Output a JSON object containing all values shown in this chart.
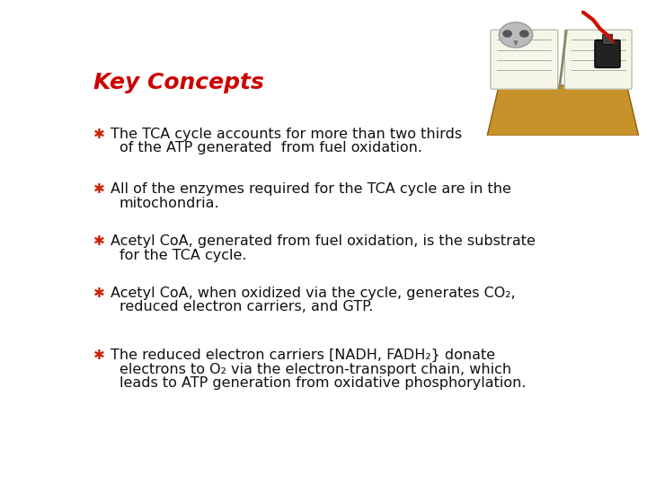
{
  "title": "Key Concepts",
  "title_color": "#cc0000",
  "title_fontsize": 18,
  "title_fontstyle": "italic",
  "title_fontweight": "bold",
  "background_color": "#ffffff",
  "bullet_color": "#cc2200",
  "text_color": "#111111",
  "text_fontsize": 11.5,
  "bullet_char": "✱",
  "bullet_fontsize": 11,
  "bullets": [
    {
      "lines": [
        "The TCA cycle accounts for more than two thirds",
        "of the ATP generated  from fuel oxidation."
      ]
    },
    {
      "lines": [
        "All of the enzymes required for the TCA cycle are in the",
        "mitochondria."
      ]
    },
    {
      "lines": [
        "Acetyl CoA, generated from fuel oxidation, is the substrate",
        "for the TCA cycle."
      ]
    },
    {
      "lines": [
        "Acetyl CoA, when oxidized via the cycle, generates CO₂,",
        "reduced electron carriers, and GTP."
      ]
    },
    {
      "lines": [
        "The reduced electron carriers [NADH, FADH₂} donate",
        "electrons to O₂ via the electron-transport chain, which",
        "leads to ATP generation from oxidative phosphorylation."
      ]
    }
  ]
}
